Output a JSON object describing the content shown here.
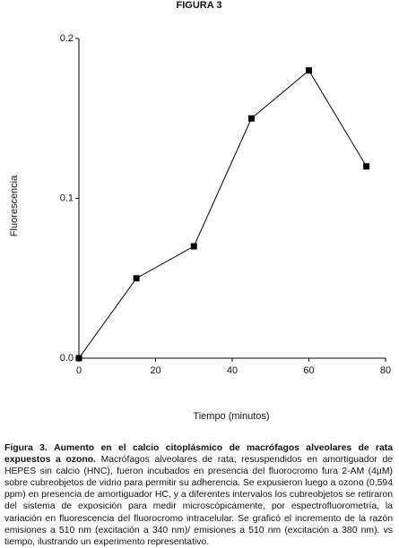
{
  "chart_data": {
    "type": "line",
    "title": "FIGURA 3",
    "x": [
      0,
      15,
      30,
      45,
      60,
      75
    ],
    "series": [
      {
        "name": "Fluorescencia",
        "color": "#000000",
        "values": [
          0.0,
          0.05,
          0.07,
          0.15,
          0.18,
          0.12
        ]
      }
    ],
    "xlabel": "Tiempo (minutos)",
    "ylabel": "Fluorescencia",
    "xlim": [
      0,
      80
    ],
    "xticks": [
      0,
      20,
      40,
      60,
      80
    ],
    "ylim": [
      0,
      0.2
    ],
    "yticks": [
      {
        "value": 0,
        "label": "0.0"
      },
      0.1,
      0.2
    ],
    "grid": false
  },
  "caption": {
    "label": "Figura 3.",
    "bold": "Aumento en el calcio citoplásmico de macrófagos alveolares de rata expuestos a ozono.",
    "text": "Macrófagos alveolares de rata, resuspendidos en amortiguador de HEPES sin calcio (HNC), fueron incubados en presencia del fluorocromo fura 2-AM (4µM) sobre cubreobjetos de vidrio para permitir su adherencia. Se expusieron luego a ozono (0,594 ppm) en presencia de amortiguador HC, y a diferentes intervalos los cubreobjetos se retiraron del sistema de exposición para medir microscópicamente, por espectrofluorometría, la variación en fluorescencia del fluorocromo intracelular. Se graficó el incremento de la razón emisiones a 510 nm (excitación a 340 nm)/ emisiones a 510 nm (excitación a 380 nm). vs tiempo, ilustrando un experimento representativo."
  }
}
